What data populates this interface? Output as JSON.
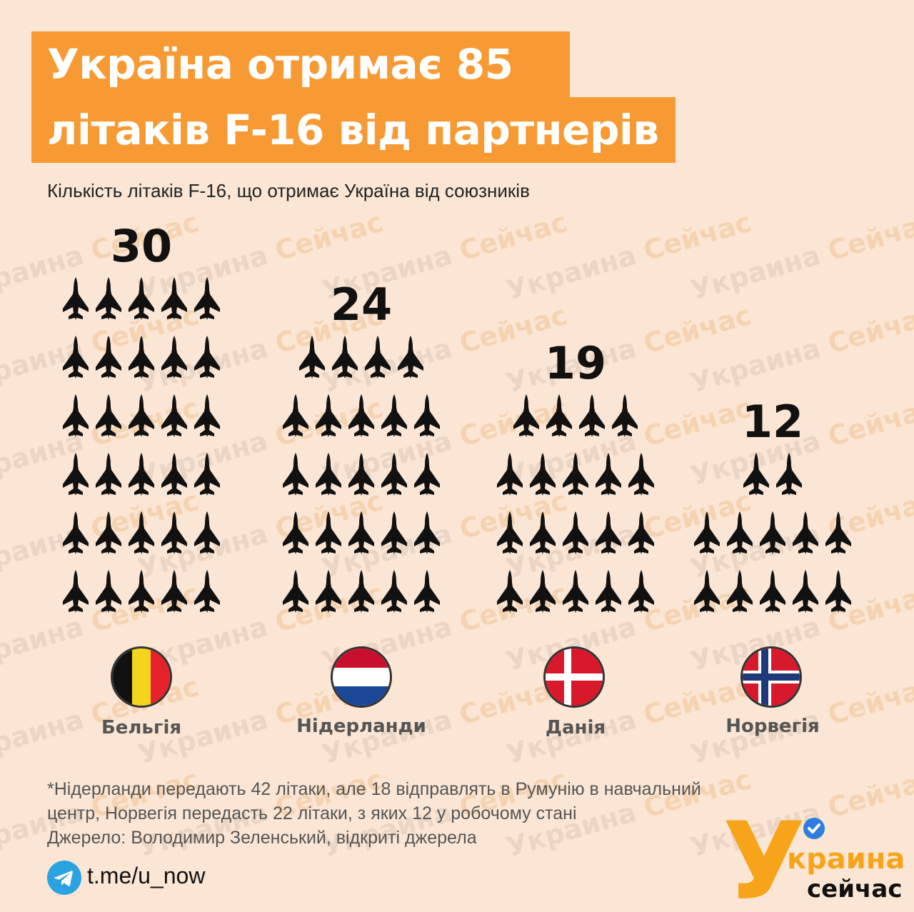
{
  "header": {
    "title_line1": "Україна отримає 85",
    "title_line2": "літаків F-16 від партнерів",
    "subtitle": "Кількість літаків F-16, що отримає Україна від союзників"
  },
  "chart_data": {
    "type": "pictogram",
    "title": "Україна отримає 85 літаків F-16 від партнерів",
    "subtitle": "Кількість літаків F-16, що отримає Україна від союзників",
    "unit_icon": "f16-jet-icon",
    "icons_per_row": 5,
    "categories": [
      "Бельгія",
      "Нідерланди",
      "Данія",
      "Норвегія"
    ],
    "values": [
      30,
      24,
      19,
      12
    ],
    "labels": [
      "30",
      "24",
      "19",
      "12"
    ]
  },
  "countries": [
    {
      "name": "Бельгія",
      "flag": "belgium-flag-icon"
    },
    {
      "name": "Нідерланди",
      "flag": "netherlands-flag-icon"
    },
    {
      "name": "Данія",
      "flag": "denmark-flag-icon"
    },
    {
      "name": "Норвегія",
      "flag": "norway-flag-icon"
    }
  ],
  "footnote": {
    "line1": "*Нідерланди передають 42 літаки, але 18 відправлять в Румунію в навчальний",
    "line2": "центр, Норвегія передасть 22 літаки, з яких 12 у робочому стані",
    "line3": "Джерело: Володимир Зеленський, відкриті джерела"
  },
  "contact": {
    "icon": "telegram-icon",
    "link": "t.me/u_now"
  },
  "logo": {
    "letter": "У",
    "word1": "краина",
    "word2": "сейчас",
    "badge": "verified-check-icon"
  },
  "watermark": {
    "text": "Украина Сейчас"
  },
  "colors": {
    "background": "#fbe6d5",
    "title_bar": "#f89a33",
    "icon": "#111111",
    "logo_orange": "#f7a41a",
    "badge_blue": "#2f7de1"
  }
}
